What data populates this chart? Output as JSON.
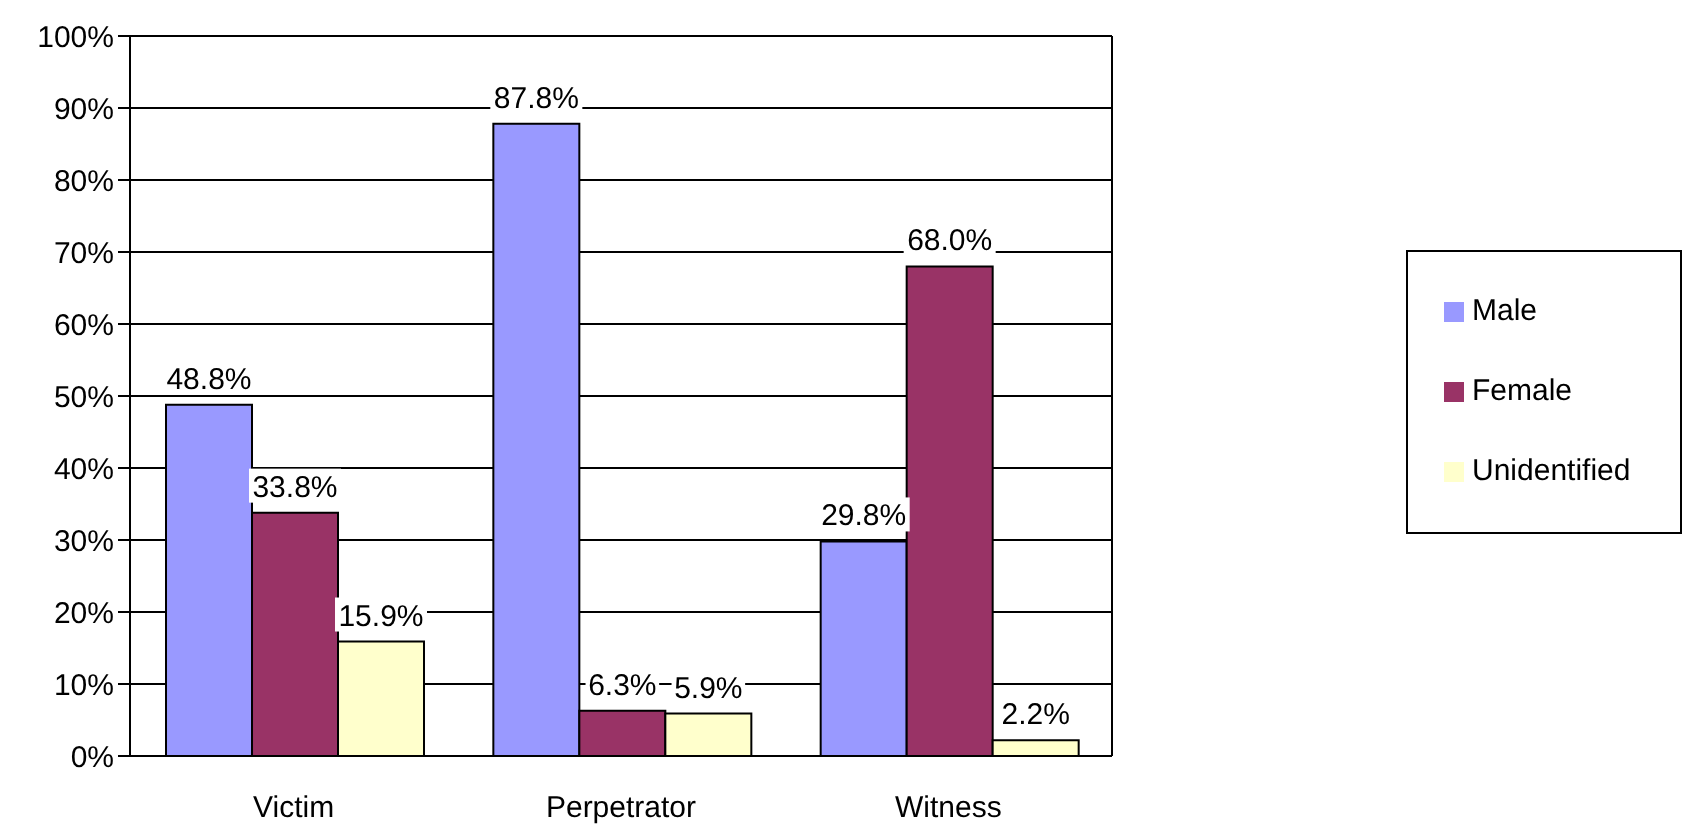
{
  "chart_data": {
    "type": "bar",
    "categories": [
      "Victim",
      "Perpetrator",
      "Witness"
    ],
    "series": [
      {
        "name": "Male",
        "color": "#9999ff",
        "values": [
          48.8,
          87.8,
          29.8
        ],
        "value_labels": [
          "48.8%",
          "87.8%",
          "29.8%"
        ]
      },
      {
        "name": "Female",
        "color": "#993366",
        "values": [
          33.8,
          6.3,
          68.0
        ],
        "value_labels": [
          "33.8%",
          "6.3%",
          "68.0%"
        ]
      },
      {
        "name": "Unidentified",
        "color": "#ffffcc",
        "values": [
          15.9,
          5.9,
          2.2
        ],
        "value_labels": [
          "15.9%",
          "5.9%",
          "2.2%"
        ]
      }
    ],
    "ylim": [
      0,
      100
    ],
    "yticks": [
      {
        "value": 0,
        "label": "0%"
      },
      {
        "value": 10,
        "label": "10%"
      },
      {
        "value": 20,
        "label": "20%"
      },
      {
        "value": 30,
        "label": "30%"
      },
      {
        "value": 40,
        "label": "40%"
      },
      {
        "value": 50,
        "label": "50%"
      },
      {
        "value": 60,
        "label": "60%"
      },
      {
        "value": 70,
        "label": "70%"
      },
      {
        "value": 80,
        "label": "80%"
      },
      {
        "value": 90,
        "label": "90%"
      },
      {
        "value": 100,
        "label": "100%"
      }
    ],
    "grid": "y",
    "legend": "right"
  }
}
